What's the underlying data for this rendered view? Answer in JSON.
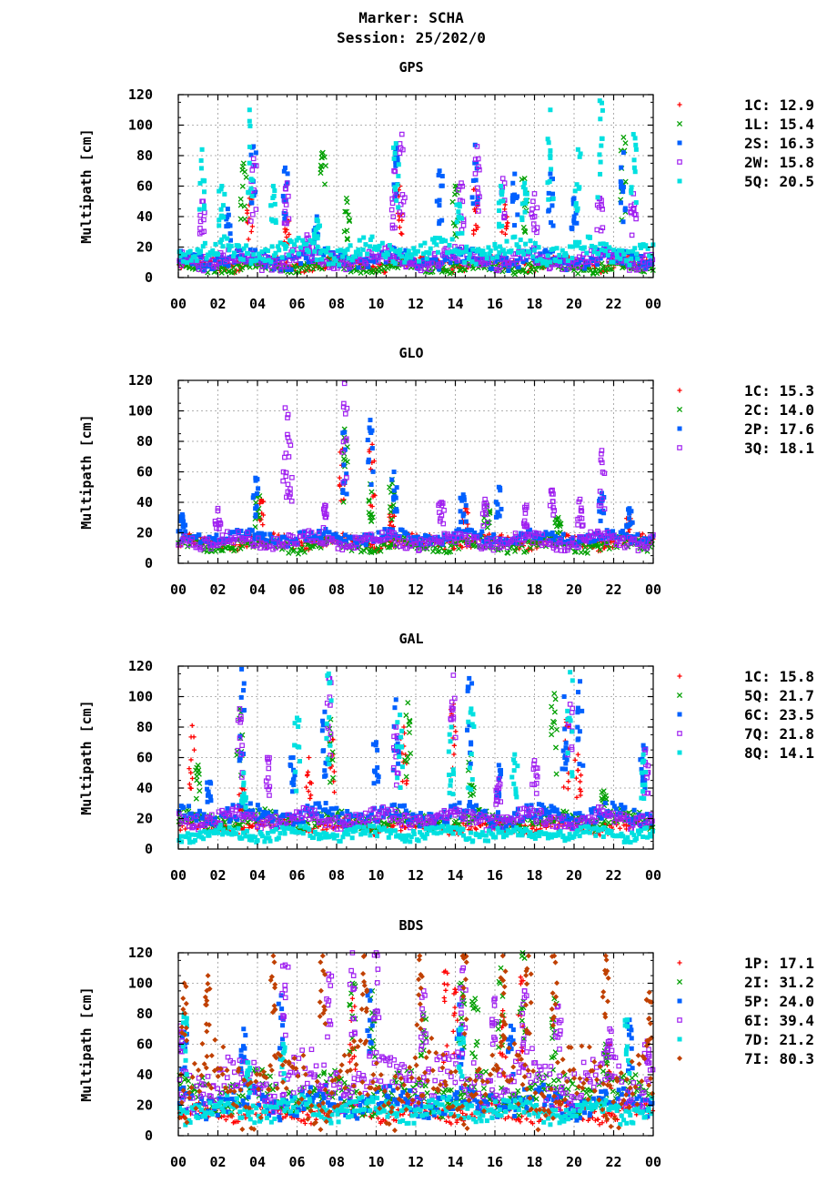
{
  "header": {
    "marker_line": "Marker: SCHA",
    "session_line": "Session: 25/202/0"
  },
  "colors": {
    "red": "#ff0000",
    "green": "#00a000",
    "blue": "#0060ff",
    "purple": "#a020f0",
    "cyan": "#00e0e0",
    "brown": "#c04000",
    "grid": "#999999"
  },
  "chart_data": [
    {
      "type": "scatter",
      "title": "GPS",
      "ylabel": "Multipath [cm]",
      "ylim": [
        0,
        120
      ],
      "yticks": [
        "0",
        "20",
        "40",
        "60",
        "80",
        "100",
        "120"
      ],
      "xlim": [
        0,
        24
      ],
      "xticks": [
        "00",
        "02",
        "04",
        "06",
        "08",
        "10",
        "12",
        "14",
        "16",
        "18",
        "20",
        "22",
        "00"
      ],
      "grid": true,
      "legend_position": "right",
      "series": [
        {
          "name": "1C",
          "value": "12.9",
          "color": "#ff0000",
          "marker": "+",
          "base": 9,
          "spread": 6,
          "bursts": [
            [
              3.6,
              52
            ],
            [
              5.5,
              38
            ],
            [
              11.2,
              60
            ],
            [
              15.0,
              58
            ],
            [
              16.5,
              50
            ]
          ]
        },
        {
          "name": "1L",
          "value": "15.4",
          "color": "#00a000",
          "marker": "x",
          "base": 7,
          "spread": 5,
          "bursts": [
            [
              3.3,
              75
            ],
            [
              7.3,
              82
            ],
            [
              8.5,
              52
            ],
            [
              14.0,
              60
            ],
            [
              17.5,
              65
            ],
            [
              22.5,
              92
            ]
          ]
        },
        {
          "name": "2S",
          "value": "16.3",
          "color": "#0060ff",
          "marker": "sq",
          "base": 12,
          "spread": 8,
          "bursts": [
            [
              2.5,
              45
            ],
            [
              3.8,
              86
            ],
            [
              5.4,
              72
            ],
            [
              7.0,
              40
            ],
            [
              11.0,
              85
            ],
            [
              13.2,
              70
            ],
            [
              15.0,
              87
            ],
            [
              17.0,
              68
            ],
            [
              18.8,
              68
            ],
            [
              20.0,
              52
            ],
            [
              22.5,
              82
            ]
          ]
        },
        {
          "name": "2W",
          "value": "15.8",
          "color": "#a020f0",
          "marker": "osq",
          "base": 12,
          "spread": 9,
          "bursts": [
            [
              1.2,
              50
            ],
            [
              3.8,
              78
            ],
            [
              5.5,
              62
            ],
            [
              6.5,
              28
            ],
            [
              10.9,
              70
            ],
            [
              11.3,
              94
            ],
            [
              14.3,
              62
            ],
            [
              15.1,
              86
            ],
            [
              16.4,
              65
            ],
            [
              18.0,
              55
            ],
            [
              21.3,
              52
            ],
            [
              23.0,
              55
            ]
          ]
        },
        {
          "name": "5Q",
          "value": "20.5",
          "color": "#00e0e0",
          "marker": "sq",
          "base": 17,
          "spread": 10,
          "bursts": [
            [
              1.2,
              84
            ],
            [
              2.2,
              60
            ],
            [
              3.6,
              110
            ],
            [
              4.8,
              60
            ],
            [
              7.0,
              38
            ],
            [
              11.0,
              88
            ],
            [
              14.2,
              48
            ],
            [
              16.3,
              60
            ],
            [
              17.5,
              62
            ],
            [
              18.8,
              110
            ],
            [
              20.2,
              84
            ],
            [
              21.3,
              116
            ],
            [
              23.0,
              94
            ]
          ]
        }
      ]
    },
    {
      "type": "scatter",
      "title": "GLO",
      "ylabel": "Multipath [cm]",
      "ylim": [
        0,
        120
      ],
      "yticks": [
        "0",
        "20",
        "40",
        "60",
        "80",
        "100",
        "120"
      ],
      "xlim": [
        0,
        24
      ],
      "xticks": [
        "00",
        "02",
        "04",
        "06",
        "08",
        "10",
        "12",
        "14",
        "16",
        "18",
        "20",
        "22",
        "00"
      ],
      "grid": true,
      "legend_position": "right",
      "series": [
        {
          "name": "1C",
          "value": "15.3",
          "color": "#ff0000",
          "marker": "+",
          "base": 14,
          "spread": 6,
          "bursts": [
            [
              4.2,
              42
            ],
            [
              8.3,
              75
            ],
            [
              9.8,
              78
            ],
            [
              10.8,
              38
            ],
            [
              14.5,
              36
            ],
            [
              22.8,
              32
            ]
          ]
        },
        {
          "name": "2C",
          "value": "14.0",
          "color": "#00a000",
          "marker": "x",
          "base": 12,
          "spread": 6,
          "bursts": [
            [
              4.0,
              45
            ],
            [
              8.4,
              88
            ],
            [
              9.7,
              52
            ],
            [
              10.8,
              55
            ],
            [
              15.6,
              38
            ],
            [
              19.2,
              30
            ]
          ]
        },
        {
          "name": "2P",
          "value": "17.6",
          "color": "#0060ff",
          "marker": "sq",
          "base": 17,
          "spread": 6,
          "bursts": [
            [
              0.2,
              32
            ],
            [
              3.9,
              56
            ],
            [
              8.4,
              86
            ],
            [
              9.7,
              94
            ],
            [
              10.9,
              60
            ],
            [
              14.4,
              45
            ],
            [
              16.2,
              50
            ],
            [
              21.4,
              46
            ],
            [
              22.8,
              36
            ]
          ]
        },
        {
          "name": "3Q",
          "value": "18.1",
          "color": "#a020f0",
          "marker": "osq",
          "base": 15,
          "spread": 7,
          "bursts": [
            [
              2.0,
              36
            ],
            [
              5.4,
              102
            ],
            [
              5.6,
              80
            ],
            [
              7.4,
              38
            ],
            [
              8.4,
              118
            ],
            [
              13.3,
              40
            ],
            [
              15.5,
              42
            ],
            [
              17.6,
              38
            ],
            [
              18.9,
              48
            ],
            [
              20.3,
              42
            ],
            [
              21.4,
              74
            ]
          ]
        }
      ]
    },
    {
      "type": "scatter",
      "title": "GAL",
      "ylabel": "Multipath [cm]",
      "ylim": [
        0,
        120
      ],
      "yticks": [
        "0",
        "20",
        "40",
        "60",
        "80",
        "100",
        "120"
      ],
      "xlim": [
        0,
        24
      ],
      "xticks": [
        "00",
        "02",
        "04",
        "06",
        "08",
        "10",
        "12",
        "14",
        "16",
        "18",
        "20",
        "22",
        "00"
      ],
      "grid": true,
      "legend_position": "right",
      "series": [
        {
          "name": "1C",
          "value": "15.8",
          "color": "#ff0000",
          "marker": "+",
          "base": 15,
          "spread": 6,
          "bursts": [
            [
              0.7,
              81
            ],
            [
              3.2,
              40
            ],
            [
              6.6,
              60
            ],
            [
              7.8,
              72
            ],
            [
              11.4,
              80
            ],
            [
              13.9,
              95
            ],
            [
              19.6,
              85
            ],
            [
              20.2,
              62
            ]
          ]
        },
        {
          "name": "5Q",
          "value": "21.7",
          "color": "#00a000",
          "marker": "x",
          "base": 19,
          "spread": 8,
          "bursts": [
            [
              1.0,
              55
            ],
            [
              3.1,
              92
            ],
            [
              7.7,
              85
            ],
            [
              11.6,
              96
            ],
            [
              14.8,
              62
            ],
            [
              19.0,
              102
            ],
            [
              21.5,
              38
            ]
          ]
        },
        {
          "name": "6C",
          "value": "23.5",
          "color": "#0060ff",
          "marker": "sq",
          "base": 22,
          "spread": 9,
          "bursts": [
            [
              1.6,
              44
            ],
            [
              3.2,
              118
            ],
            [
              5.8,
              60
            ],
            [
              7.4,
              90
            ],
            [
              10.0,
              70
            ],
            [
              11.0,
              98
            ],
            [
              14.7,
              112
            ],
            [
              16.2,
              55
            ],
            [
              19.5,
              100
            ],
            [
              20.3,
              110
            ],
            [
              23.5,
              68
            ]
          ]
        },
        {
          "name": "7Q",
          "value": "21.8",
          "color": "#a020f0",
          "marker": "osq",
          "base": 20,
          "spread": 8,
          "bursts": [
            [
              3.1,
              92
            ],
            [
              4.5,
              60
            ],
            [
              7.6,
              112
            ],
            [
              11.0,
              80
            ],
            [
              13.9,
              114
            ],
            [
              16.2,
              46
            ],
            [
              18.0,
              58
            ],
            [
              19.8,
              95
            ],
            [
              23.6,
              65
            ]
          ]
        },
        {
          "name": "8Q",
          "value": "14.1",
          "color": "#00e0e0",
          "marker": "sq",
          "base": 10,
          "spread": 6,
          "bursts": [
            [
              3.3,
              50
            ],
            [
              6.0,
              86
            ],
            [
              7.6,
              115
            ],
            [
              11.2,
              88
            ],
            [
              13.8,
              80
            ],
            [
              14.8,
              92
            ],
            [
              17.0,
              62
            ],
            [
              19.8,
              116
            ],
            [
              23.5,
              62
            ]
          ]
        }
      ]
    },
    {
      "type": "scatter",
      "title": "BDS",
      "ylabel": "Multipath [cm]",
      "ylim": [
        0,
        120
      ],
      "yticks": [
        "0",
        "20",
        "40",
        "60",
        "80",
        "100",
        "120"
      ],
      "xlim": [
        0,
        24
      ],
      "xticks": [
        "00",
        "02",
        "04",
        "06",
        "08",
        "10",
        "12",
        "14",
        "16",
        "18",
        "20",
        "22",
        "00"
      ],
      "grid": true,
      "legend_position": "right",
      "series": [
        {
          "name": "1P",
          "value": "17.1",
          "color": "#ff0000",
          "marker": "+",
          "base": 15,
          "spread": 8,
          "bursts": [
            [
              8.8,
              90
            ],
            [
              13.5,
              108
            ],
            [
              14.0,
              96
            ],
            [
              16.4,
              82
            ],
            [
              17.3,
              104
            ],
            [
              21.8,
              60
            ]
          ]
        },
        {
          "name": "2I",
          "value": "31.2",
          "color": "#00a000",
          "marker": "x",
          "base": 28,
          "spread": 16,
          "bursts": [
            [
              8.8,
              100
            ],
            [
              9.8,
              95
            ],
            [
              12.4,
              80
            ],
            [
              14.3,
              100
            ],
            [
              15.0,
              90
            ],
            [
              16.3,
              110
            ],
            [
              17.4,
              120
            ],
            [
              19.0,
              90
            ],
            [
              21.6,
              60
            ]
          ]
        },
        {
          "name": "5P",
          "value": "24.0",
          "color": "#0060ff",
          "marker": "sq",
          "base": 22,
          "spread": 12,
          "bursts": [
            [
              0.3,
              68
            ],
            [
              3.3,
              70
            ],
            [
              5.2,
              92
            ],
            [
              9.7,
              95
            ],
            [
              14.2,
              86
            ],
            [
              16.8,
              72
            ],
            [
              22.8,
              76
            ]
          ]
        },
        {
          "name": "6I",
          "value": "39.4",
          "color": "#a020f0",
          "marker": "osq",
          "base": 36,
          "spread": 22,
          "bursts": [
            [
              0.1,
              72
            ],
            [
              5.4,
              112
            ],
            [
              7.6,
              106
            ],
            [
              8.8,
              120
            ],
            [
              10.0,
              120
            ],
            [
              12.4,
              95
            ],
            [
              14.4,
              110
            ],
            [
              16.0,
              90
            ],
            [
              17.5,
              95
            ],
            [
              19.2,
              85
            ],
            [
              21.8,
              70
            ],
            [
              23.7,
              62
            ]
          ]
        },
        {
          "name": "7D",
          "value": "21.2",
          "color": "#00e0e0",
          "marker": "sq",
          "base": 17,
          "spread": 10,
          "bursts": [
            [
              0.3,
              80
            ],
            [
              3.5,
              48
            ],
            [
              5.3,
              60
            ],
            [
              14.3,
              70
            ],
            [
              22.7,
              76
            ]
          ]
        },
        {
          "name": "7I",
          "value": "80.3",
          "color": "#c04000",
          "marker": "dia",
          "base": 34,
          "spread": 32,
          "bursts": [
            [
              0.3,
              100
            ],
            [
              1.5,
              105
            ],
            [
              4.8,
              118
            ],
            [
              7.3,
              118
            ],
            [
              9.4,
              118
            ],
            [
              12.2,
              118
            ],
            [
              14.5,
              118
            ],
            [
              16.4,
              118
            ],
            [
              17.7,
              118
            ],
            [
              19.0,
              118
            ],
            [
              21.6,
              118
            ],
            [
              23.8,
              94
            ]
          ]
        }
      ]
    }
  ]
}
